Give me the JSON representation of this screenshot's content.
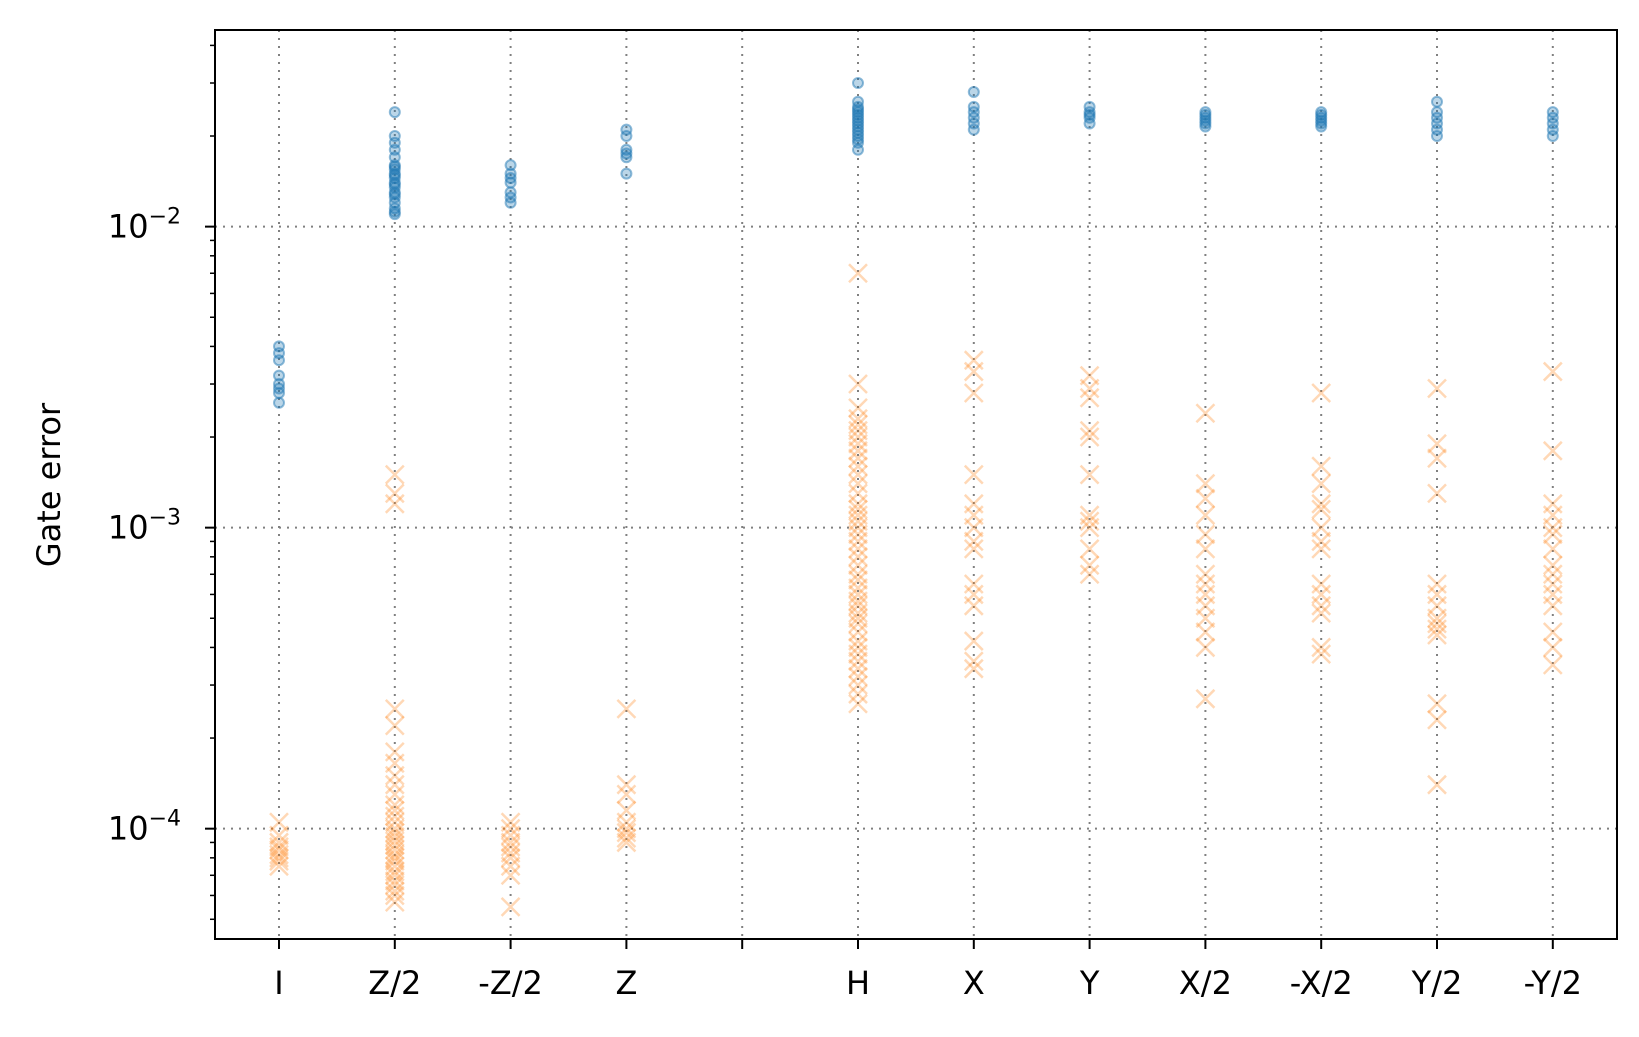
{
  "chart_data": {
    "type": "scatter",
    "ylabel": "Gate error",
    "y_scale": "log",
    "ylim": [
      4.3e-05,
      0.045
    ],
    "grid": true,
    "categories": [
      "I",
      "Z/2",
      "-Z/2",
      "Z",
      "",
      "H",
      "X",
      "Y",
      "X/2",
      "-X/2",
      "Y/2",
      "-Y/2"
    ],
    "y_ticks": [
      {
        "value": 0.0001,
        "base": "10",
        "exp": "−4"
      },
      {
        "value": 0.001,
        "base": "10",
        "exp": "−3"
      },
      {
        "value": 0.01,
        "base": "10",
        "exp": "−2"
      }
    ],
    "colors": {
      "series_1": "#1f77b4",
      "series_2": "#ff7f0e",
      "grid": "#808080"
    },
    "series": [
      {
        "marker": "circle",
        "color": "#1f77b4",
        "values": [
          [
            0.004,
            0.0038,
            0.0036,
            0.0032,
            0.003,
            0.0029,
            0.0028,
            0.0026
          ],
          [
            0.024,
            0.02,
            0.019,
            0.018,
            0.017,
            0.016,
            0.0155,
            0.015,
            0.0145,
            0.014,
            0.0135,
            0.013,
            0.0125,
            0.012,
            0.0115,
            0.011,
            0.0112,
            0.0128,
            0.0138,
            0.0148,
            0.0158
          ],
          [
            0.016,
            0.015,
            0.0145,
            0.014,
            0.013,
            0.0125,
            0.012
          ],
          [
            0.021,
            0.02,
            0.018,
            0.0175,
            0.017,
            0.015
          ],
          [],
          [
            0.03,
            0.026,
            0.025,
            0.024,
            0.023,
            0.0225,
            0.022,
            0.0215,
            0.021,
            0.0205,
            0.02,
            0.0195,
            0.019,
            0.018,
            0.0235,
            0.0245
          ],
          [
            0.028,
            0.025,
            0.024,
            0.023,
            0.022,
            0.021
          ],
          [
            0.025,
            0.024,
            0.0235,
            0.023,
            0.022
          ],
          [
            0.024,
            0.0235,
            0.023,
            0.0225,
            0.022,
            0.0215
          ],
          [
            0.024,
            0.0235,
            0.023,
            0.0225,
            0.022,
            0.0215
          ],
          [
            0.026,
            0.024,
            0.023,
            0.022,
            0.021,
            0.02
          ],
          [
            0.024,
            0.023,
            0.022,
            0.021,
            0.02
          ]
        ]
      },
      {
        "marker": "x",
        "color": "#ff7f0e",
        "values": [
          [
            0.000105,
            9.5e-05,
            9e-05,
            8.7e-05,
            8.5e-05,
            8.2e-05,
            8e-05,
            7.8e-05,
            7.5e-05
          ],
          [
            0.0015,
            0.0013,
            0.0012,
            0.00025,
            0.00022,
            0.00018,
            0.000165,
            0.00015,
            0.00014,
            0.00013,
            0.00012,
            0.000115,
            0.00011,
            0.000105,
            0.0001,
            9.7e-05,
            9.4e-05,
            9.1e-05,
            8.8e-05,
            8.5e-05,
            8.2e-05,
            8e-05,
            7.8e-05,
            7.5e-05,
            7.2e-05,
            7e-05,
            6.7e-05,
            6.5e-05,
            6.2e-05,
            6e-05,
            5.7e-05
          ],
          [
            0.000105,
            0.0001,
            9.5e-05,
            9e-05,
            8.7e-05,
            8.3e-05,
            8e-05,
            7.5e-05,
            7e-05,
            5.5e-05
          ],
          [
            0.00025,
            0.00014,
            0.00013,
            0.000115,
            0.000105,
            0.0001,
            9.7e-05,
            9.3e-05,
            9e-05
          ],
          [],
          [
            0.007,
            0.003,
            0.0025,
            0.0023,
            0.0022,
            0.0021,
            0.002,
            0.0019,
            0.0018,
            0.0017,
            0.0016,
            0.0015,
            0.0014,
            0.0013,
            0.0012,
            0.00115,
            0.0011,
            0.00105,
            0.001,
            0.00095,
            0.0009,
            0.00085,
            0.0008,
            0.00075,
            0.0007,
            0.00067,
            0.00063,
            0.0006,
            0.00057,
            0.00055,
            0.00052,
            0.0005,
            0.00048,
            0.00045,
            0.00042,
            0.0004,
            0.00038,
            0.00036,
            0.00034,
            0.00032,
            0.0003,
            0.00028,
            0.00026
          ],
          [
            0.0036,
            0.0033,
            0.0028,
            0.0015,
            0.0012,
            0.0011,
            0.001,
            0.0009,
            0.00085,
            0.00065,
            0.0006,
            0.00055,
            0.00042,
            0.00036,
            0.00034
          ],
          [
            0.0032,
            0.0029,
            0.0027,
            0.0021,
            0.002,
            0.0015,
            0.0011,
            0.00105,
            0.001,
            0.00085,
            0.00075,
            0.0007
          ],
          [
            0.0024,
            0.0014,
            0.00125,
            0.0011,
            0.00095,
            0.00085,
            0.0007,
            0.00065,
            0.0006,
            0.00055,
            0.0005,
            0.00045,
            0.0004,
            0.00027
          ],
          [
            0.0028,
            0.0016,
            0.0014,
            0.0012,
            0.00115,
            0.001,
            0.0009,
            0.00085,
            0.00065,
            0.0006,
            0.00055,
            0.00052,
            0.0004,
            0.00038
          ],
          [
            0.0029,
            0.0019,
            0.0017,
            0.0013,
            0.00065,
            0.0006,
            0.00055,
            0.0005,
            0.00048,
            0.00046,
            0.00044,
            0.00026,
            0.00023,
            0.00014
          ],
          [
            0.0033,
            0.0018,
            0.0012,
            0.0011,
            0.001,
            0.00095,
            0.00085,
            0.00075,
            0.0007,
            0.00065,
            0.0006,
            0.00055,
            0.00045,
            0.0004,
            0.00035
          ]
        ]
      }
    ]
  }
}
